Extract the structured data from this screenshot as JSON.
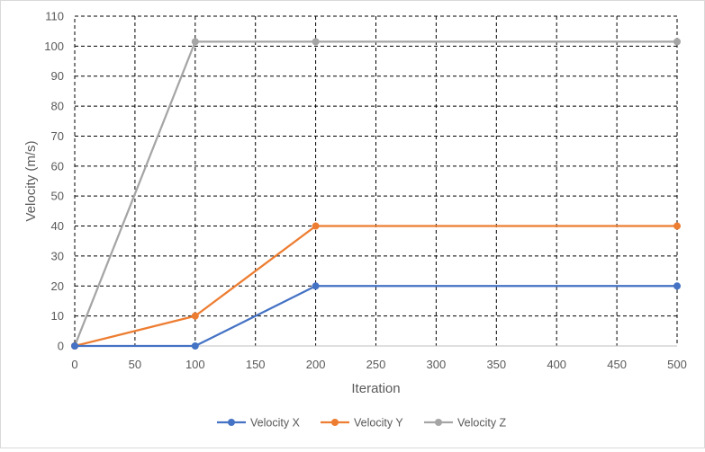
{
  "chart_data": {
    "type": "line",
    "xlabel": "Iteration",
    "ylabel": "Velocity (m/s)",
    "x": [
      0,
      100,
      200,
      500
    ],
    "xlim": [
      0,
      500
    ],
    "ylim": [
      0,
      110
    ],
    "x_ticks": [
      "0",
      "50",
      "100",
      "150",
      "200",
      "250",
      "300",
      "350",
      "400",
      "450",
      "500"
    ],
    "y_ticks": [
      "0",
      "10",
      "20",
      "30",
      "40",
      "50",
      "60",
      "70",
      "80",
      "90",
      "100",
      "110"
    ],
    "grid": true,
    "grid_style": "dashed",
    "legend_position": "bottom",
    "series": [
      {
        "name": "Velocity X",
        "color": "#4472C4",
        "values": [
          0,
          0,
          20,
          20
        ]
      },
      {
        "name": "Velocity Y",
        "color": "#ED7D31",
        "values": [
          0,
          10,
          40,
          40
        ]
      },
      {
        "name": "Velocity Z",
        "color": "#A5A5A5",
        "values": [
          0,
          101.5,
          101.5,
          101.5
        ]
      }
    ]
  }
}
